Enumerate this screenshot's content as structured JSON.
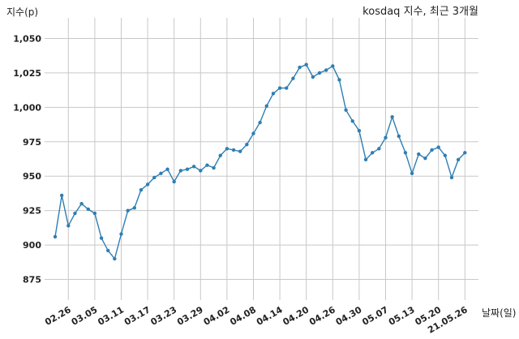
{
  "chart_data": {
    "type": "line",
    "title": "kosdaq 지수, 최근 3개월",
    "ylabel": "지수(p)",
    "xlabel": "날짜(일)",
    "ylim": [
      860,
      1065
    ],
    "grid": true,
    "line_color": "#2e7eb4",
    "grid_color": "#c8c8c8",
    "y_ticks": [
      875,
      900,
      925,
      950,
      975,
      1000,
      1025,
      1050
    ],
    "y_tick_labels": [
      "875",
      "900",
      "925",
      "950",
      "975",
      "1,000",
      "1,025",
      "1,050"
    ],
    "x_tick_labels": [
      "02.26",
      "03.05",
      "03.11",
      "03.17",
      "03.23",
      "03.29",
      "04.02",
      "04.08",
      "04.14",
      "04.20",
      "04.26",
      "04.30",
      "05.07",
      "05.13",
      "05.20",
      "21.05.26"
    ],
    "x_tick_index": [
      2,
      6,
      10,
      14,
      18,
      22,
      26,
      30,
      34,
      38,
      42,
      46,
      50,
      54,
      58,
      62
    ],
    "series": [
      {
        "values": [
          906,
          936,
          914,
          923,
          930,
          926,
          923,
          905,
          896,
          890,
          908,
          925,
          927,
          940,
          944,
          949,
          952,
          955,
          946,
          954,
          955,
          957,
          954,
          958,
          956,
          965,
          970,
          969,
          968,
          973,
          981,
          989,
          1001,
          1010,
          1014,
          1014,
          1021,
          1029,
          1031,
          1022,
          1025,
          1027,
          1030,
          1020,
          998,
          990,
          983,
          962,
          967,
          970,
          978,
          993,
          979,
          967,
          952,
          966,
          963,
          969,
          971,
          965,
          949,
          962,
          967
        ]
      }
    ]
  }
}
